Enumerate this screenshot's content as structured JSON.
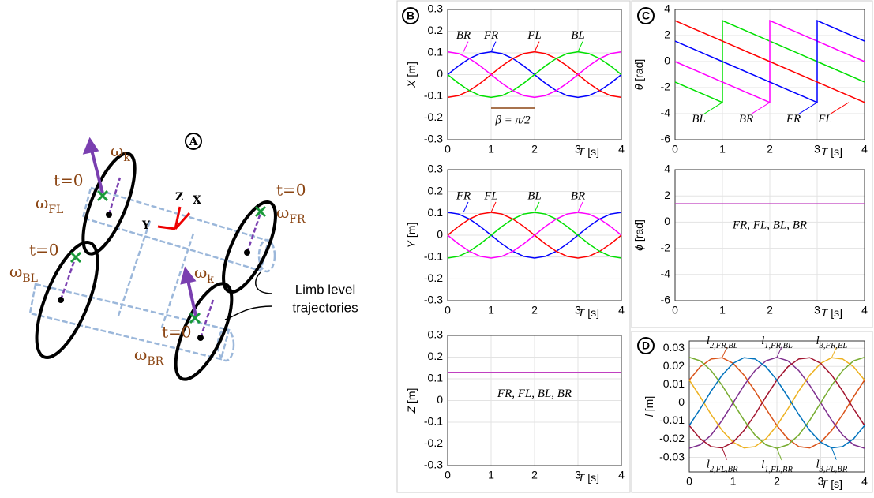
{
  "diagram": {
    "panel": "A",
    "omega_k_upper": "ωk",
    "omega_k_lower": "ωk",
    "t0_fl": "t=0",
    "omega_fl": "ωFL",
    "t0_fr": "t=0",
    "omega_fr": "ωFR",
    "t0_bl": "t=0",
    "omega_bl": "ωBL",
    "t0_br": "t=0",
    "omega_br": "ωBR",
    "axis_z": "Z",
    "axis_x": "X",
    "axis_y": "Y",
    "callout_line1": "Limb level",
    "callout_line2": "trajectories"
  },
  "chart_data": [
    {
      "type": "line",
      "panel": "B",
      "xlabel": "T [s]",
      "ylabel": "X [m]",
      "grid": true,
      "x": [
        0,
        0.25,
        0.5,
        0.75,
        1,
        1.25,
        1.5,
        1.75,
        2,
        2.25,
        2.5,
        2.75,
        3,
        3.25,
        3.5,
        3.75,
        4
      ],
      "xlim": [
        0,
        4
      ],
      "xticks": [
        0,
        1,
        2,
        3,
        4
      ],
      "ylim": [
        -0.3,
        0.3
      ],
      "yticks": [
        -0.3,
        -0.2,
        -0.1,
        0,
        0.1,
        0.2,
        0.3
      ],
      "annotation": "β = π/2",
      "series": [
        {
          "name": "FR",
          "color": "#0000ff",
          "values": [
            0,
            0.04,
            0.074,
            0.097,
            0.105,
            0.097,
            0.074,
            0.04,
            0,
            -0.04,
            -0.074,
            -0.097,
            -0.105,
            -0.097,
            -0.074,
            -0.04,
            0
          ]
        },
        {
          "name": "FL",
          "color": "#ff0000",
          "values": [
            -0.105,
            -0.097,
            -0.074,
            -0.04,
            0,
            0.04,
            0.074,
            0.097,
            0.105,
            0.097,
            0.074,
            0.04,
            0,
            -0.04,
            -0.074,
            -0.097,
            -0.105
          ]
        },
        {
          "name": "BL",
          "color": "#00e000",
          "values": [
            0,
            -0.04,
            -0.074,
            -0.097,
            -0.105,
            -0.097,
            -0.074,
            -0.04,
            0,
            0.04,
            0.074,
            0.097,
            0.105,
            0.097,
            0.074,
            0.04,
            0
          ]
        },
        {
          "name": "BR",
          "color": "#ff00ff",
          "values": [
            0.105,
            0.097,
            0.074,
            0.04,
            0,
            -0.04,
            -0.074,
            -0.097,
            -0.105,
            -0.097,
            -0.074,
            -0.04,
            0,
            0.04,
            0.074,
            0.097,
            0.105
          ]
        }
      ]
    },
    {
      "type": "line",
      "xlabel": "T [s]",
      "ylabel": "Y [m]",
      "grid": true,
      "x": [
        0,
        0.25,
        0.5,
        0.75,
        1,
        1.25,
        1.5,
        1.75,
        2,
        2.25,
        2.5,
        2.75,
        3,
        3.25,
        3.5,
        3.75,
        4
      ],
      "xlim": [
        0,
        4
      ],
      "xticks": [
        0,
        1,
        2,
        3,
        4
      ],
      "ylim": [
        -0.3,
        0.3
      ],
      "yticks": [
        -0.3,
        -0.2,
        -0.1,
        0,
        0.1,
        0.2,
        0.3
      ],
      "series": [
        {
          "name": "FR",
          "color": "#0000ff",
          "values": [
            0.105,
            0.097,
            0.074,
            0.04,
            0,
            -0.04,
            -0.074,
            -0.097,
            -0.105,
            -0.097,
            -0.074,
            -0.04,
            0,
            0.04,
            0.074,
            0.097,
            0.105
          ]
        },
        {
          "name": "FL",
          "color": "#ff0000",
          "values": [
            0,
            0.04,
            0.074,
            0.097,
            0.105,
            0.097,
            0.074,
            0.04,
            0,
            -0.04,
            -0.074,
            -0.097,
            -0.105,
            -0.097,
            -0.074,
            -0.04,
            0
          ]
        },
        {
          "name": "BL",
          "color": "#00e000",
          "values": [
            -0.105,
            -0.097,
            -0.074,
            -0.04,
            0,
            0.04,
            0.074,
            0.097,
            0.105,
            0.097,
            0.074,
            0.04,
            0,
            -0.04,
            -0.074,
            -0.097,
            -0.105
          ]
        },
        {
          "name": "BR",
          "color": "#ff00ff",
          "values": [
            0,
            -0.04,
            -0.074,
            -0.097,
            -0.105,
            -0.097,
            -0.074,
            -0.04,
            0,
            0.04,
            0.074,
            0.097,
            0.105,
            0.097,
            0.074,
            0.04,
            0
          ]
        }
      ]
    },
    {
      "type": "line",
      "xlabel": "T [s]",
      "ylabel": "Z [m]",
      "grid": true,
      "x": [
        0,
        4
      ],
      "xlim": [
        0,
        4
      ],
      "xticks": [
        0,
        1,
        2,
        3,
        4
      ],
      "ylim": [
        -0.3,
        0.3
      ],
      "yticks": [
        -0.3,
        -0.2,
        -0.1,
        0,
        0.1,
        0.2,
        0.3
      ],
      "series": [
        {
          "name": "FR, FL, BL, BR",
          "color": "#c040c0",
          "values": [
            0.13,
            0.13
          ]
        }
      ]
    },
    {
      "type": "line",
      "panel": "C",
      "xlabel": "T [s]",
      "ylabel": "θ [rad]",
      "grid": true,
      "x": [
        0,
        1,
        1,
        2,
        2,
        3,
        3,
        4
      ],
      "xlim": [
        0,
        4
      ],
      "xticks": [
        0,
        1,
        2,
        3,
        4
      ],
      "ylim": [
        -6,
        4
      ],
      "yticks": [
        -6,
        -4,
        -2,
        0,
        2,
        4
      ],
      "series": [
        {
          "name": "BL",
          "color": "#00e000",
          "values": [
            -1.57,
            -3.14,
            3.14,
            1.57,
            1.57,
            0,
            0,
            -1.57
          ]
        },
        {
          "name": "BR",
          "color": "#ff00ff",
          "values": [
            0,
            -1.57,
            -1.57,
            -3.14,
            3.14,
            1.57,
            1.57,
            0
          ]
        },
        {
          "name": "FR",
          "color": "#0000ff",
          "values": [
            1.57,
            0,
            0,
            -1.57,
            -1.57,
            -3.14,
            3.14,
            1.57
          ]
        },
        {
          "name": "FL",
          "color": "#ff0000",
          "values": [
            3.14,
            1.57,
            1.57,
            0,
            0,
            -1.57,
            -1.57,
            -3.14
          ]
        }
      ]
    },
    {
      "type": "line",
      "xlabel": "T [s]",
      "ylabel": "ϕ [rad]",
      "grid": true,
      "x": [
        0,
        4
      ],
      "xlim": [
        0,
        4
      ],
      "xticks": [
        0,
        1,
        2,
        3,
        4
      ],
      "ylim": [
        -6,
        4
      ],
      "yticks": [
        -6,
        -4,
        -2,
        0,
        2,
        4
      ],
      "series": [
        {
          "name": "FR, FL, BL, BR",
          "color": "#c040c0",
          "values": [
            1.4,
            1.4
          ]
        }
      ]
    },
    {
      "type": "line",
      "panel": "D",
      "xlabel": "T [s]",
      "ylabel": "l [m]",
      "grid": true,
      "x": [
        0,
        0.25,
        0.5,
        0.75,
        1,
        1.25,
        1.5,
        1.75,
        2,
        2.25,
        2.5,
        2.75,
        3,
        3.25,
        3.5,
        3.75,
        4
      ],
      "xlim": [
        0,
        4
      ],
      "xticks": [
        0,
        1,
        2,
        3,
        4
      ],
      "ylim": [
        -0.038,
        0.034
      ],
      "yticks": [
        -0.03,
        -0.02,
        -0.01,
        0,
        0.01,
        0.02,
        0.03
      ],
      "series": [
        {
          "name": "l2,FR,BL",
          "color": "#d95319",
          "values": [
            0.0125,
            0.0198,
            0.0241,
            0.0248,
            0.0217,
            0.0152,
            0.0065,
            -0.0033,
            -0.0125,
            -0.0198,
            -0.0241,
            -0.0248,
            -0.0217,
            -0.0152,
            -0.0065,
            0.0033,
            0.0125
          ]
        },
        {
          "name": "l1,FR,BL",
          "color": "#7e2f8e",
          "values": [
            -0.025,
            -0.0231,
            -0.0177,
            -0.0096,
            0,
            0.0096,
            0.0177,
            0.0231,
            0.025,
            0.0231,
            0.0177,
            0.0096,
            0,
            -0.0096,
            -0.0177,
            -0.0231,
            -0.025
          ]
        },
        {
          "name": "l3,FR,BL",
          "color": "#edb120",
          "values": [
            0.0125,
            0.0033,
            -0.0065,
            -0.0152,
            -0.0217,
            -0.0248,
            -0.0241,
            -0.0198,
            -0.0125,
            -0.0033,
            0.0065,
            0.0152,
            0.0217,
            0.0248,
            0.0241,
            0.0198,
            0.0125
          ]
        },
        {
          "name": "l2,FL,BR",
          "color": "#a2142f",
          "values": [
            -0.0125,
            -0.0198,
            -0.0241,
            -0.0248,
            -0.0217,
            -0.0152,
            -0.0065,
            0.0033,
            0.0125,
            0.0198,
            0.0241,
            0.0248,
            0.0217,
            0.0152,
            0.0065,
            -0.0033,
            -0.0125
          ]
        },
        {
          "name": "l1,FL,BR",
          "color": "#77ac30",
          "values": [
            0.025,
            0.0231,
            0.0177,
            0.0096,
            0,
            -0.0096,
            -0.0177,
            -0.0231,
            -0.025,
            -0.0231,
            -0.0177,
            -0.0096,
            0,
            0.0096,
            0.0177,
            0.0231,
            0.025
          ]
        },
        {
          "name": "l3,FL,BR",
          "color": "#0072bd",
          "values": [
            -0.0125,
            -0.0033,
            0.0065,
            0.0152,
            0.0217,
            0.0248,
            0.0241,
            0.0198,
            0.0125,
            0.0033,
            -0.0065,
            -0.0152,
            -0.0217,
            -0.0248,
            -0.0241,
            -0.0198,
            -0.0125
          ]
        }
      ]
    }
  ]
}
